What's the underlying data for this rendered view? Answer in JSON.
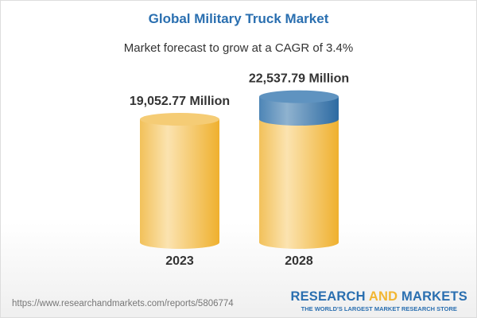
{
  "header": {
    "title": "Global Military Truck Market",
    "subtitle": "Market forecast to grow at a CAGR of 3.4%"
  },
  "chart_data": {
    "type": "bar",
    "style": "3d-cylinder",
    "categories": [
      "2023",
      "2028"
    ],
    "values": [
      19052.77,
      22537.79
    ],
    "data_labels": [
      "19,052.77 Million",
      "22,537.79 Million"
    ],
    "colors": {
      "base": "#f2c562",
      "growth": "#4a86b8"
    },
    "xlabel": "",
    "ylabel": ""
  },
  "footer": {
    "url": "https://www.researchandmarkets.com/reports/5806774",
    "logo_part1": "RESEARCH ",
    "logo_part2": "AND",
    "logo_part3": " MARKETS",
    "tagline": "THE WORLD'S LARGEST MARKET RESEARCH STORE"
  }
}
